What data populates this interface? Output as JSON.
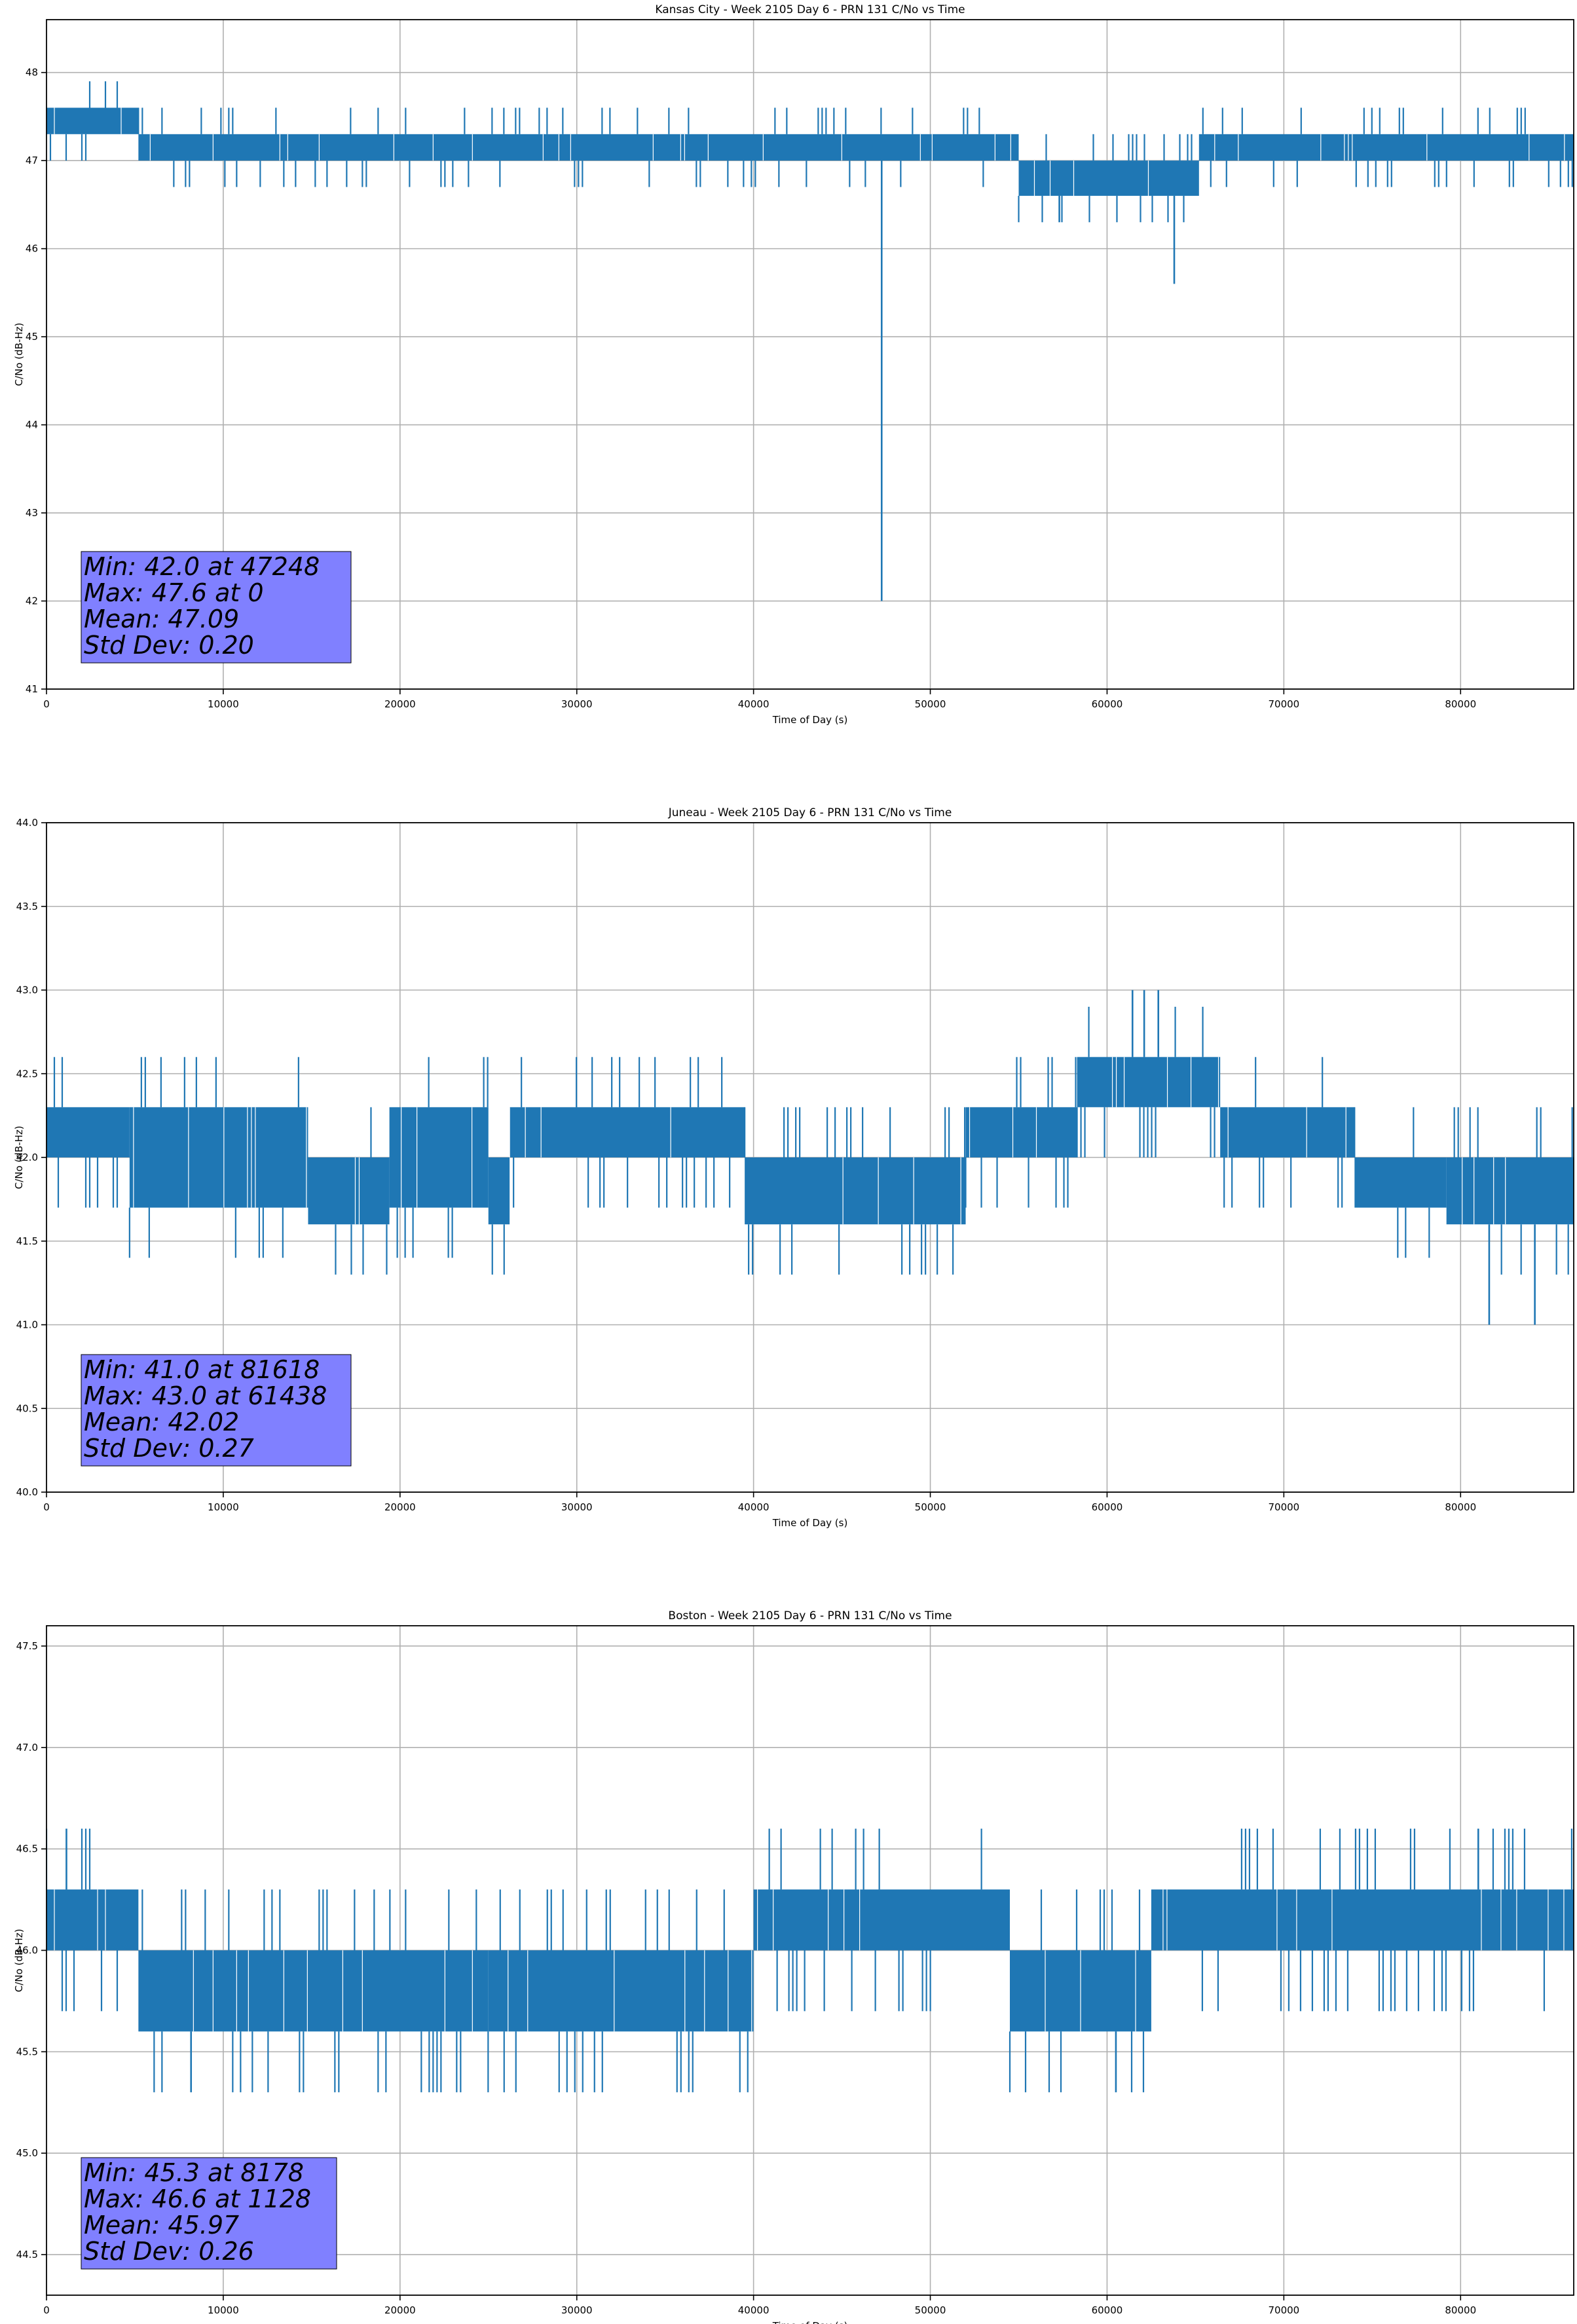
{
  "chart_data": [
    {
      "type": "line",
      "title": "Kansas City - Week 2105 Day 6 - PRN 131 C/No vs Time",
      "xlabel": "Time of Day (s)",
      "ylabel": "C/No (dB-Hz)",
      "xlim": [
        0,
        86400
      ],
      "ylim": [
        41,
        48.6
      ],
      "xticks": [
        0,
        10000,
        20000,
        30000,
        40000,
        50000,
        60000,
        70000,
        80000
      ],
      "yticks": [
        41,
        42,
        43,
        44,
        45,
        46,
        47,
        48
      ],
      "ytick_labels": [
        "41",
        "42",
        "43",
        "44",
        "45",
        "46",
        "47",
        "48"
      ],
      "grid": true,
      "series_color": "#1f77b4",
      "band": [
        {
          "x0": 0,
          "x1": 5200,
          "low": 47.3,
          "high": 47.6
        },
        {
          "x0": 5200,
          "x1": 55000,
          "low": 47.0,
          "high": 47.3
        },
        {
          "x0": 55000,
          "x1": 65200,
          "low": 46.6,
          "high": 47.0
        },
        {
          "x0": 65200,
          "x1": 86400,
          "low": 47.0,
          "high": 47.3
        }
      ],
      "excursions": [
        {
          "x": 47248,
          "y": 42.0
        },
        {
          "x": 57300,
          "y": 46.3
        },
        {
          "x": 63800,
          "y": 45.6
        }
      ],
      "stats": {
        "min": "Min: 42.0 at 47248",
        "max": "Max: 47.6 at 0",
        "mean": "Mean: 47.09",
        "std": "Std Dev: 0.20"
      },
      "stats_box_color": "#8080ff"
    },
    {
      "type": "line",
      "title": "Juneau - Week 2105 Day 6 - PRN 131 C/No vs Time",
      "xlabel": "Time of Day (s)",
      "ylabel": "C/No (dB-Hz)",
      "xlim": [
        0,
        86400
      ],
      "ylim": [
        40,
        44
      ],
      "xticks": [
        0,
        10000,
        20000,
        30000,
        40000,
        50000,
        60000,
        70000,
        80000
      ],
      "yticks": [
        40,
        40.5,
        41,
        41.5,
        42,
        42.5,
        43,
        43.5,
        44
      ],
      "ytick_labels": [
        "40.0",
        "40.5",
        "41.0",
        "41.5",
        "42.0",
        "42.5",
        "43.0",
        "43.5",
        "44.0"
      ],
      "grid": true,
      "series_color": "#1f77b4",
      "band": [
        {
          "x0": 0,
          "x1": 4700,
          "low": 42.0,
          "high": 42.3
        },
        {
          "x0": 4700,
          "x1": 14800,
          "low": 41.7,
          "high": 42.3
        },
        {
          "x0": 14800,
          "x1": 19400,
          "low": 41.6,
          "high": 42.0
        },
        {
          "x0": 19400,
          "x1": 25000,
          "low": 41.7,
          "high": 42.3
        },
        {
          "x0": 25000,
          "x1": 26200,
          "low": 41.6,
          "high": 42.0
        },
        {
          "x0": 26200,
          "x1": 39500,
          "low": 42.0,
          "high": 42.3
        },
        {
          "x0": 39500,
          "x1": 52000,
          "low": 41.6,
          "high": 42.0
        },
        {
          "x0": 52000,
          "x1": 58300,
          "low": 42.0,
          "high": 42.3
        },
        {
          "x0": 58300,
          "x1": 66400,
          "low": 42.3,
          "high": 42.6
        },
        {
          "x0": 66400,
          "x1": 74000,
          "low": 42.0,
          "high": 42.3
        },
        {
          "x0": 74000,
          "x1": 79200,
          "low": 41.7,
          "high": 42.0
        },
        {
          "x0": 79200,
          "x1": 86400,
          "low": 41.6,
          "high": 42.0
        }
      ],
      "excursions": [
        {
          "x": 81618,
          "y": 41.0
        },
        {
          "x": 84200,
          "y": 41.0
        },
        {
          "x": 61438,
          "y": 43.0
        },
        {
          "x": 62100,
          "y": 43.0
        },
        {
          "x": 62900,
          "y": 43.0
        }
      ],
      "stats": {
        "min": "Min: 41.0 at 81618",
        "max": "Max: 43.0 at 61438",
        "mean": "Mean: 42.02",
        "std": "Std Dev: 0.27"
      },
      "stats_box_color": "#8080ff"
    },
    {
      "type": "line",
      "title": "Boston - Week 2105 Day 6 - PRN 131 C/No vs Time",
      "xlabel": "Time of Day (s)",
      "ylabel": "C/No (dB-Hz)",
      "xlim": [
        0,
        86400
      ],
      "ylim": [
        44.3,
        47.6
      ],
      "xticks": [
        0,
        10000,
        20000,
        30000,
        40000,
        50000,
        60000,
        70000,
        80000
      ],
      "yticks": [
        44.5,
        45,
        45.5,
        46,
        46.5,
        47,
        47.5
      ],
      "ytick_labels": [
        "44.5",
        "45.0",
        "45.5",
        "46.0",
        "46.5",
        "47.0",
        "47.5"
      ],
      "grid": true,
      "series_color": "#1f77b4",
      "band": [
        {
          "x0": 0,
          "x1": 5200,
          "low": 46.0,
          "high": 46.3
        },
        {
          "x0": 5200,
          "x1": 25000,
          "low": 45.6,
          "high": 46.0
        },
        {
          "x0": 25000,
          "x1": 40000,
          "low": 45.6,
          "high": 46.0
        },
        {
          "x0": 40000,
          "x1": 54500,
          "low": 46.0,
          "high": 46.3
        },
        {
          "x0": 54500,
          "x1": 62500,
          "low": 45.6,
          "high": 46.0
        },
        {
          "x0": 62500,
          "x1": 86400,
          "low": 46.0,
          "high": 46.3
        }
      ],
      "excursions": [
        {
          "x": 8178,
          "y": 45.3
        },
        {
          "x": 1128,
          "y": 46.6
        },
        {
          "x": 60500,
          "y": 45.3
        },
        {
          "x": 81000,
          "y": 46.6
        }
      ],
      "stats": {
        "min": "Min: 45.3 at 8178",
        "max": "Max: 46.6 at 1128",
        "mean": "Mean: 45.97",
        "std": "Std Dev: 0.26"
      },
      "stats_box_color": "#8080ff"
    }
  ]
}
